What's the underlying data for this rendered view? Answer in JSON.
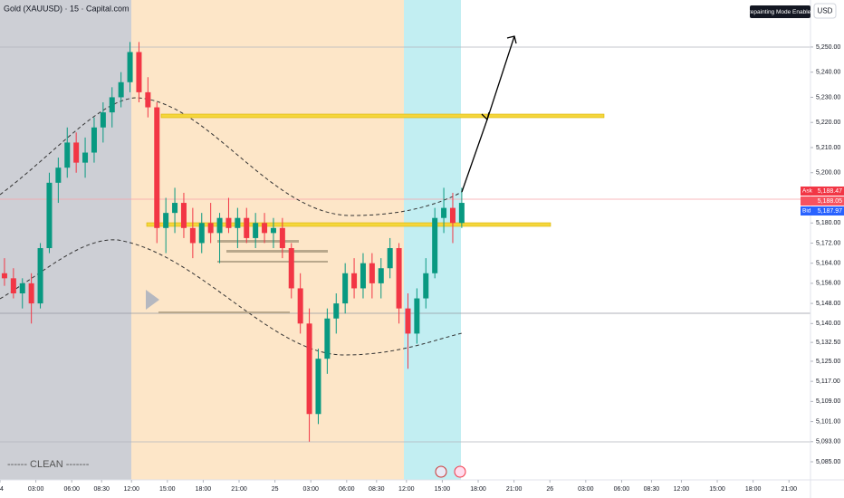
{
  "chart_data": {
    "type": "candlestick",
    "title": "Gold (XAUUSD) · 15 · Capital.com",
    "badge": "Repainting Mode Enabled",
    "currency": "USD",
    "annotation": "------ CLEAN -------",
    "price_tags": [
      {
        "label": "Ask",
        "value": "5,188.47"
      },
      {
        "label": "",
        "value": "5,188.05"
      },
      {
        "label": "Bid",
        "value": "5,187.97"
      }
    ],
    "up_color": "#089981",
    "down_color": "#f23645",
    "xlim": [
      0,
      271.2
    ],
    "ylim": [
      5077.8,
      5268.7
    ],
    "x": [
      1.5,
      4.5,
      7.5,
      10.5,
      13.5,
      16.5,
      19.5,
      22.5,
      25.5,
      28.5,
      31.5,
      34.5,
      37.5,
      40.5,
      43.5,
      46.5,
      49.5,
      52.5,
      55.5,
      58.5,
      61.5,
      64.5,
      67.5,
      70.5,
      73.5,
      76.5,
      79.5,
      82.5,
      85.5,
      88.5,
      91.5,
      94.5,
      97.5,
      100.5,
      103.5,
      106.5,
      109.5,
      112.5,
      115.5,
      118.5,
      121.5,
      124.5,
      127.5,
      130.5,
      133.5,
      136.5,
      139.5,
      142.5,
      145.5,
      148.5,
      151.5,
      154.5
    ],
    "open": [
      5160,
      5158,
      5152,
      5156,
      5148,
      5170,
      5196,
      5202,
      5212,
      5204,
      5208,
      5218,
      5224,
      5230,
      5236,
      5248,
      5232,
      5226,
      5178,
      5184,
      5188,
      5178,
      5172,
      5180,
      5176,
      5182,
      5178,
      5182,
      5174,
      5180,
      5176,
      5178,
      5170,
      5154,
      5140,
      5104,
      5126,
      5142,
      5148,
      5160,
      5154,
      5164,
      5156,
      5162,
      5170,
      5146,
      5136,
      5150,
      5160,
      5182,
      5186,
      5180
    ],
    "high": [
      5166,
      5162,
      5158,
      5160,
      5172,
      5200,
      5206,
      5218,
      5216,
      5214,
      5222,
      5228,
      5234,
      5240,
      5252,
      5252,
      5238,
      5228,
      5190,
      5194,
      5192,
      5186,
      5184,
      5188,
      5184,
      5190,
      5186,
      5186,
      5184,
      5184,
      5182,
      5182,
      5172,
      5160,
      5146,
      5130,
      5146,
      5152,
      5164,
      5166,
      5168,
      5168,
      5166,
      5174,
      5172,
      5152,
      5154,
      5166,
      5186,
      5194,
      5192,
      5194
    ],
    "low": [
      5155,
      5150,
      5146,
      5140,
      5146,
      5168,
      5188,
      5198,
      5200,
      5198,
      5204,
      5212,
      5218,
      5226,
      5232,
      5228,
      5222,
      5172,
      5168,
      5176,
      5174,
      5166,
      5168,
      5172,
      5164,
      5176,
      5170,
      5172,
      5170,
      5172,
      5170,
      5166,
      5150,
      5136,
      5093,
      5100,
      5120,
      5136,
      5144,
      5150,
      5150,
      5150,
      5150,
      5158,
      5140,
      5122,
      5132,
      5146,
      5158,
      5176,
      5172,
      5178
    ],
    "close": [
      5158,
      5152,
      5156,
      5148,
      5170,
      5196,
      5202,
      5212,
      5204,
      5208,
      5218,
      5224,
      5230,
      5236,
      5248,
      5232,
      5226,
      5178,
      5184,
      5188,
      5178,
      5172,
      5180,
      5176,
      5182,
      5178,
      5182,
      5174,
      5180,
      5176,
      5178,
      5170,
      5154,
      5140,
      5104,
      5126,
      5142,
      5148,
      5160,
      5154,
      5164,
      5156,
      5162,
      5170,
      5146,
      5136,
      5150,
      5160,
      5182,
      5186,
      5180,
      5188
    ],
    "yticks": [
      {
        "value": 5250,
        "label": "5,250.00"
      },
      {
        "value": 5240,
        "label": "5,240.00"
      },
      {
        "value": 5230,
        "label": "5,230.00"
      },
      {
        "value": 5220,
        "label": "5,220.00"
      },
      {
        "value": 5210,
        "label": "5,210.00"
      },
      {
        "value": 5200,
        "label": "5,200.00"
      },
      {
        "value": 5180,
        "label": "5,180.00"
      },
      {
        "value": 5172,
        "label": "5,172.00"
      },
      {
        "value": 5164,
        "label": "5,164.00"
      },
      {
        "value": 5156,
        "label": "5,156.00"
      },
      {
        "value": 5148,
        "label": "5,148.00"
      },
      {
        "value": 5140,
        "label": "5,140.00"
      },
      {
        "value": 5132.5,
        "label": "5,132.50"
      },
      {
        "value": 5125,
        "label": "5,125.00"
      },
      {
        "value": 5117,
        "label": "5,117.00"
      },
      {
        "value": 5109,
        "label": "5,109.00"
      },
      {
        "value": 5101,
        "label": "5,101.00"
      },
      {
        "value": 5093,
        "label": "5,093.00"
      },
      {
        "value": 5085,
        "label": "5,085.00"
      }
    ],
    "xticks": [
      {
        "value": 0,
        "label": "4"
      },
      {
        "value": 12,
        "label": "03:00"
      },
      {
        "value": 24,
        "label": "06:00"
      },
      {
        "value": 34,
        "label": "08:30"
      },
      {
        "value": 44,
        "label": "12:00"
      },
      {
        "value": 56,
        "label": "15:00"
      },
      {
        "value": 68,
        "label": "18:00"
      },
      {
        "value": 80,
        "label": "21:00"
      },
      {
        "value": 92,
        "label": "25"
      },
      {
        "value": 104,
        "label": "03:00"
      },
      {
        "value": 116,
        "label": "06:00"
      },
      {
        "value": 126,
        "label": "08:30"
      },
      {
        "value": 136,
        "label": "12:00"
      },
      {
        "value": 148,
        "label": "15:00"
      },
      {
        "value": 160,
        "label": "18:00"
      },
      {
        "value": 172,
        "label": "21:00"
      },
      {
        "value": 184,
        "label": "26"
      },
      {
        "value": 196,
        "label": "03:00"
      },
      {
        "value": 208,
        "label": "06:00"
      },
      {
        "value": 218,
        "label": "08:30"
      },
      {
        "value": 228,
        "label": "12:00"
      },
      {
        "value": 240,
        "label": "15:00"
      },
      {
        "value": 252,
        "label": "18:00"
      },
      {
        "value": 264,
        "label": "21:00"
      }
    ]
  }
}
